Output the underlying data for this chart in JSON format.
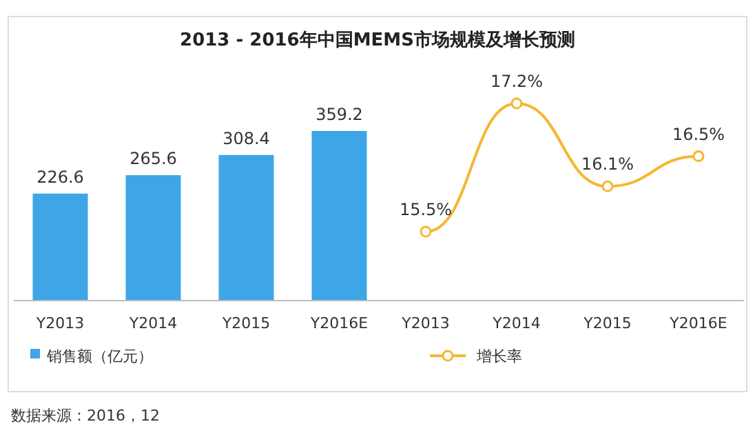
{
  "chart_data": [
    {
      "type": "bar",
      "title": "2013 - 2016年中国MEMS市场规模及增长预测",
      "categories": [
        "Y2013",
        "Y2014",
        "Y2015",
        "Y2016E"
      ],
      "series": [
        {
          "name": "销售额（亿元）",
          "color": "#3ea6e6",
          "values": [
            226.6,
            265.6,
            308.4,
            359.2
          ]
        }
      ],
      "data_labels": true,
      "legend": "bottom",
      "annotations": [
        "数据来源：2016，12"
      ]
    },
    {
      "type": "line",
      "categories": [
        "Y2013",
        "Y2014",
        "Y2015",
        "Y2016E"
      ],
      "series": [
        {
          "name": "增长率",
          "color": "#f5b731",
          "values": [
            15.5,
            17.2,
            16.1,
            16.5
          ],
          "value_labels": [
            "15.5%",
            "17.2%",
            "16.1%",
            "16.5%"
          ]
        }
      ],
      "marker": "circle",
      "line_style": "solid",
      "legend": "bottom"
    }
  ]
}
